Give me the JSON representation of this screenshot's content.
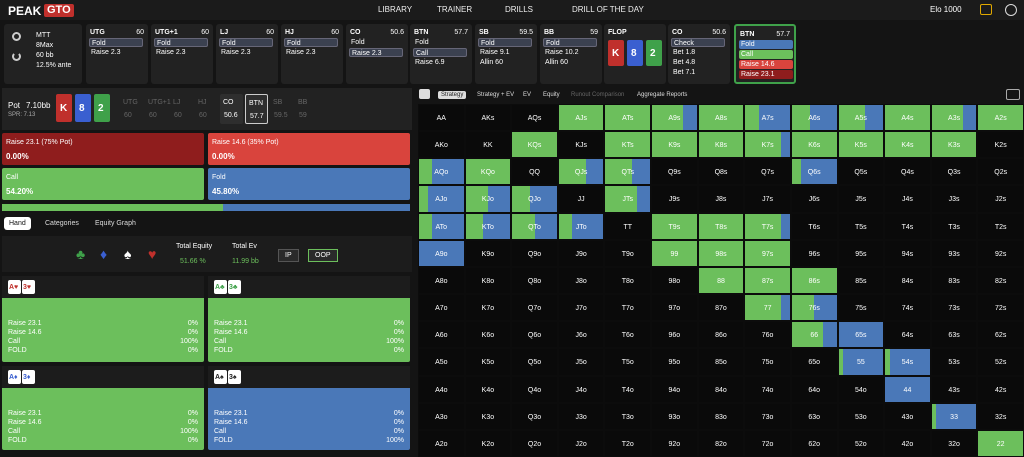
{
  "header": {
    "logo_a": "PEAK",
    "logo_b": "GTO",
    "nav": [
      "LIBRARY",
      "TRAINER",
      "DRILLS",
      "DRILL OF THE DAY"
    ],
    "elo": "Elo 1000"
  },
  "game": {
    "format": "MTT",
    "table": "8Max",
    "stack": "60 bb",
    "ante": "12.5% ante"
  },
  "actions": [
    {
      "pos": "UTG",
      "stack": "60",
      "lines": [
        "Fold",
        "Raise 2.3"
      ],
      "active": 0
    },
    {
      "pos": "UTG+1",
      "stack": "60",
      "lines": [
        "Fold",
        "Raise 2.3"
      ],
      "active": 0
    },
    {
      "pos": "LJ",
      "stack": "60",
      "lines": [
        "Fold",
        "Raise 2.3"
      ],
      "active": 0
    },
    {
      "pos": "HJ",
      "stack": "60",
      "lines": [
        "Fold",
        "Raise 2.3"
      ],
      "active": 0
    },
    {
      "pos": "CO",
      "stack": "50.6",
      "lines": [
        "Fold",
        "Raise 2.3"
      ],
      "active": 1
    },
    {
      "pos": "BTN",
      "stack": "57.7",
      "lines": [
        "Fold",
        "Call",
        "Raise 6.9"
      ],
      "active": 1
    },
    {
      "pos": "SB",
      "stack": "59.5",
      "lines": [
        "Fold",
        "Raise 9.1",
        "Allin 60"
      ],
      "active": 0
    },
    {
      "pos": "BB",
      "stack": "59",
      "lines": [
        "Fold",
        "Raise 10.2",
        "Allin 60"
      ],
      "active": 0
    },
    {
      "pos": "FLOP",
      "board": [
        {
          "rank": "K",
          "color": "#c0302c"
        },
        {
          "rank": "8",
          "color": "#3a5fd0"
        },
        {
          "rank": "2",
          "color": "#3fa14a"
        }
      ]
    },
    {
      "pos": "CO",
      "stack": "50.6",
      "lines": [
        "Check",
        "Bet 1.8",
        "Bet 4.8",
        "Bet 7.1"
      ],
      "active": 0
    },
    {
      "pos": "BTN",
      "stack": "57.7",
      "lines": [
        "Fold",
        "Call",
        "Raise 14.6",
        "Raise 23.1"
      ],
      "line_colors": [
        "#4a78b8",
        "#6cbf5c",
        "#d9443d",
        "#8f1d1d"
      ]
    }
  ],
  "pot": {
    "label": "Pot",
    "value": "7.10bb",
    "spr": "SPR: 7.13",
    "board": [
      {
        "rank": "K",
        "color": "#c0302c"
      },
      {
        "rank": "8",
        "color": "#3a5fd0"
      },
      {
        "rank": "2",
        "color": "#3fa14a"
      }
    ],
    "seats": [
      {
        "pos": "UTG",
        "stack": "60"
      },
      {
        "pos": "UTG+1",
        "stack": "60"
      },
      {
        "pos": "LJ",
        "stack": "60"
      },
      {
        "pos": "HJ",
        "stack": "60"
      },
      {
        "pos": "CO",
        "stack": "50.6"
      },
      {
        "pos": "BTN",
        "stack": "57.7"
      },
      {
        "pos": "SB",
        "stack": "59.5"
      },
      {
        "pos": "BB",
        "stack": "59"
      }
    ]
  },
  "strategy": [
    {
      "label": "Raise 23.1 (75% Pot)",
      "value": 0,
      "value_label": "0.00%",
      "color": "#8f1d1d"
    },
    {
      "label": "Raise 14.6 (35% Pot)",
      "value": 0,
      "value_label": "0.00%",
      "color": "#d9443d"
    },
    {
      "label": "Call",
      "value": 54.2,
      "value_label": "54.20%",
      "color": "#6cbf5c"
    },
    {
      "label": "Fold",
      "value": 45.8,
      "value_label": "45.80%",
      "color": "#4a78b8"
    }
  ],
  "tabs": [
    "Hand",
    "Categories",
    "Equity Graph"
  ],
  "suits": [
    {
      "s": "♣",
      "color": "#3fa14a"
    },
    {
      "s": "♦",
      "color": "#3a5fd0"
    },
    {
      "s": "♠",
      "color": "#ffffff"
    },
    {
      "s": "♥",
      "color": "#c0302c"
    }
  ],
  "stats": {
    "equity_label": "Total Equity",
    "equity": "51.66 %",
    "ev_label": "Total Ev",
    "ev": "11.99 bb",
    "toggles": [
      "IP",
      "OOP"
    ]
  },
  "hands": [
    {
      "cards": [
        {
          "t": "A♥",
          "color": "#c0302c"
        },
        {
          "t": "3♥",
          "color": "#c0302c"
        }
      ],
      "color": "#6cbf5c",
      "rows": [
        [
          "Raise 23.1",
          "0%"
        ],
        [
          "Raise 14.6",
          "0%"
        ],
        [
          "Call",
          "100%"
        ],
        [
          "FOLD",
          "0%"
        ]
      ]
    },
    {
      "cards": [
        {
          "t": "A♣",
          "color": "#3fa14a"
        },
        {
          "t": "3♣",
          "color": "#3fa14a"
        }
      ],
      "color": "#6cbf5c",
      "rows": [
        [
          "Raise 23.1",
          "0%"
        ],
        [
          "Raise 14.6",
          "0%"
        ],
        [
          "Call",
          "100%"
        ],
        [
          "FOLD",
          "0%"
        ]
      ]
    },
    {
      "cards": [
        {
          "t": "A♦",
          "color": "#3a5fd0"
        },
        {
          "t": "3♦",
          "color": "#3a5fd0"
        }
      ],
      "color": "#6cbf5c",
      "rows": [
        [
          "Raise 23.1",
          "0%"
        ],
        [
          "Raise 14.6",
          "0%"
        ],
        [
          "Call",
          "100%"
        ],
        [
          "FOLD",
          "0%"
        ]
      ]
    },
    {
      "cards": [
        {
          "t": "A♠",
          "color": "#222222"
        },
        {
          "t": "3♠",
          "color": "#222222"
        }
      ],
      "color": "#4a78b8",
      "rows": [
        [
          "Raise 23.1",
          "0%"
        ],
        [
          "Raise 14.6",
          "0%"
        ],
        [
          "Call",
          "0%"
        ],
        [
          "FOLD",
          "100%"
        ]
      ]
    }
  ],
  "grid_tabs": [
    "Strategy",
    "Strategy + EV",
    "EV",
    "Equity",
    "Runout Comparison",
    "Aggregate Reports"
  ],
  "grid": {
    "call_color": "#6cbf5c",
    "fold_color": "#4a78b8",
    "labels": [
      [
        "AA",
        "AKs",
        "AQs",
        "AJs",
        "ATs",
        "A9s",
        "A8s",
        "A7s",
        "A6s",
        "A5s",
        "A4s",
        "A3s",
        "A2s"
      ],
      [
        "AKo",
        "KK",
        "KQs",
        "KJs",
        "KTs",
        "K9s",
        "K8s",
        "K7s",
        "K6s",
        "K5s",
        "K4s",
        "K3s",
        "K2s"
      ],
      [
        "AQo",
        "KQo",
        "QQ",
        "QJs",
        "QTs",
        "Q9s",
        "Q8s",
        "Q7s",
        "Q6s",
        "Q5s",
        "Q4s",
        "Q3s",
        "Q2s"
      ],
      [
        "AJo",
        "KJo",
        "QJo",
        "JJ",
        "JTs",
        "J9s",
        "J8s",
        "J7s",
        "J6s",
        "J5s",
        "J4s",
        "J3s",
        "J2s"
      ],
      [
        "ATo",
        "KTo",
        "QTo",
        "JTo",
        "TT",
        "T9s",
        "T8s",
        "T7s",
        "T6s",
        "T5s",
        "T4s",
        "T3s",
        "T2s"
      ],
      [
        "A9o",
        "K9o",
        "Q9o",
        "J9o",
        "T9o",
        "99",
        "98s",
        "97s",
        "96s",
        "95s",
        "94s",
        "93s",
        "92s"
      ],
      [
        "A8o",
        "K8o",
        "Q8o",
        "J8o",
        "T8o",
        "98o",
        "88",
        "87s",
        "86s",
        "85s",
        "84s",
        "83s",
        "82s"
      ],
      [
        "A7o",
        "K7o",
        "Q7o",
        "J7o",
        "T7o",
        "97o",
        "87o",
        "77",
        "76s",
        "75s",
        "74s",
        "73s",
        "72s"
      ],
      [
        "A6o",
        "K6o",
        "Q6o",
        "J6o",
        "T6o",
        "96o",
        "86o",
        "76o",
        "66",
        "65s",
        "64s",
        "63s",
        "62s"
      ],
      [
        "A5o",
        "K5o",
        "Q5o",
        "J5o",
        "T5o",
        "95o",
        "85o",
        "75o",
        "65o",
        "55",
        "54s",
        "53s",
        "52s"
      ],
      [
        "A4o",
        "K4o",
        "Q4o",
        "J4o",
        "T4o",
        "94o",
        "84o",
        "74o",
        "64o",
        "54o",
        "44",
        "43s",
        "42s"
      ],
      [
        "A3o",
        "K3o",
        "Q3o",
        "J3o",
        "T3o",
        "93o",
        "83o",
        "73o",
        "63o",
        "53o",
        "43o",
        "33",
        "32s"
      ],
      [
        "A2o",
        "K2o",
        "Q2o",
        "J2o",
        "T2o",
        "92o",
        "82o",
        "72o",
        "62o",
        "52o",
        "42o",
        "32o",
        "22"
      ]
    ],
    "call": [
      [
        null,
        null,
        null,
        100,
        100,
        70,
        100,
        30,
        40,
        60,
        100,
        70,
        100
      ],
      [
        null,
        null,
        100,
        null,
        100,
        100,
        100,
        80,
        100,
        100,
        100,
        100,
        null
      ],
      [
        30,
        100,
        null,
        60,
        60,
        null,
        null,
        null,
        20,
        null,
        null,
        null,
        null
      ],
      [
        20,
        50,
        40,
        null,
        70,
        null,
        null,
        null,
        null,
        null,
        null,
        null,
        null
      ],
      [
        30,
        40,
        50,
        30,
        null,
        100,
        100,
        80,
        null,
        null,
        null,
        null,
        null
      ],
      [
        0,
        null,
        null,
        null,
        null,
        100,
        100,
        100,
        null,
        null,
        null,
        null,
        null
      ],
      [
        null,
        null,
        null,
        null,
        null,
        null,
        100,
        100,
        100,
        null,
        null,
        null,
        null
      ],
      [
        null,
        null,
        null,
        null,
        null,
        null,
        null,
        80,
        50,
        null,
        null,
        null,
        null
      ],
      [
        null,
        null,
        null,
        null,
        null,
        null,
        null,
        null,
        70,
        0,
        null,
        null,
        null
      ],
      [
        null,
        null,
        null,
        null,
        null,
        null,
        null,
        null,
        null,
        10,
        10,
        null,
        null
      ],
      [
        null,
        null,
        null,
        null,
        null,
        null,
        null,
        null,
        null,
        null,
        0,
        null,
        null
      ],
      [
        null,
        null,
        null,
        null,
        null,
        null,
        null,
        null,
        null,
        null,
        null,
        10,
        null
      ],
      [
        null,
        null,
        null,
        null,
        null,
        null,
        null,
        null,
        null,
        null,
        null,
        null,
        100
      ]
    ]
  }
}
